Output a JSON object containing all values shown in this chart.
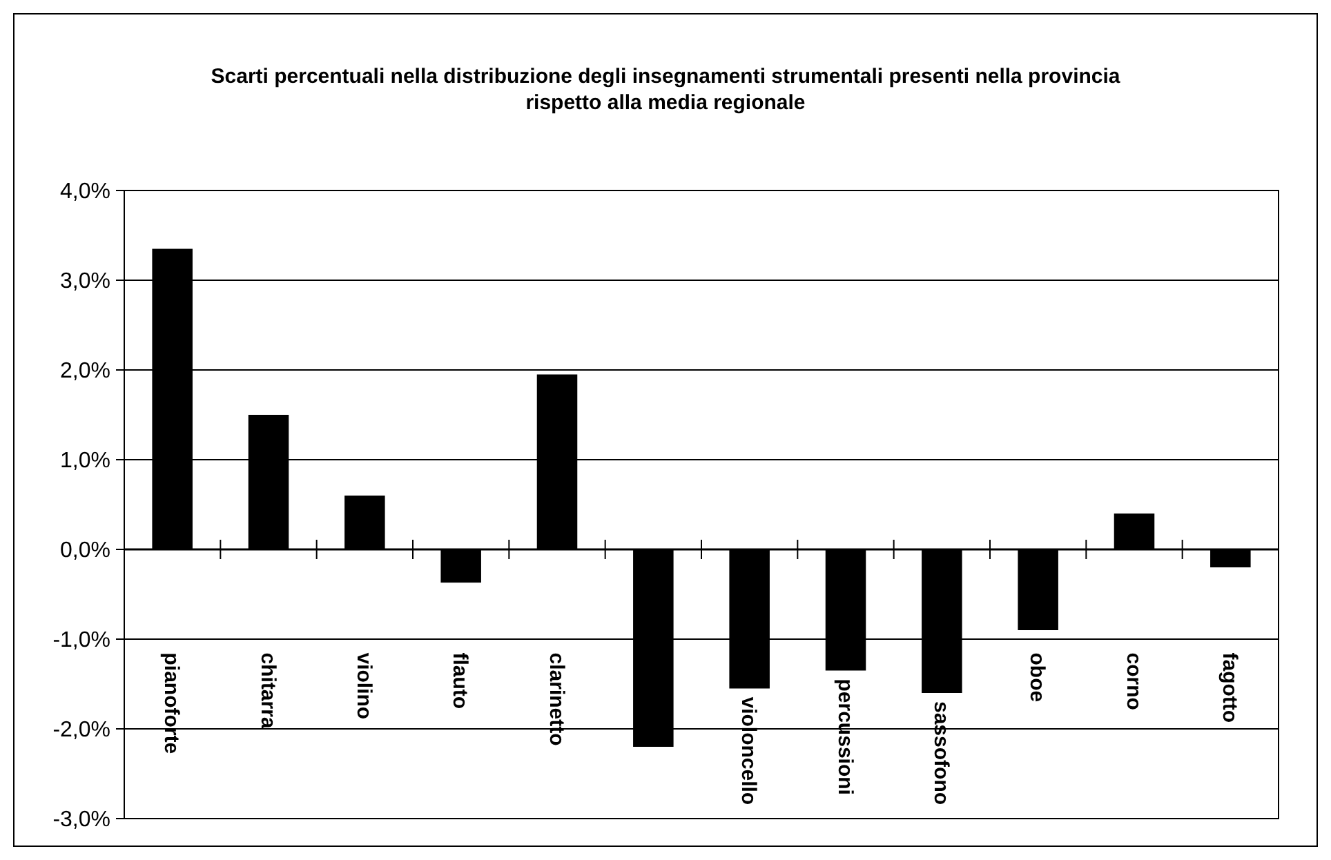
{
  "chart_data": {
    "type": "bar",
    "title": "Scarti percentuali nella distribuzione degli insegnamenti strumentali presenti nella provincia rispetto alla media regionale",
    "categories": [
      "pianoforte",
      "chitarra",
      "violino",
      "flauto",
      "clarinetto",
      null,
      "violoncello",
      "percussioni",
      "sassofono",
      "oboe",
      "corno",
      "fagotto"
    ],
    "values": [
      3.35,
      1.5,
      0.6,
      -0.37,
      1.95,
      -2.2,
      -1.55,
      -1.35,
      -1.6,
      -0.9,
      0.4,
      -0.2
    ],
    "color": "#000000",
    "ylim": [
      -3,
      4
    ],
    "yticks": [
      {
        "value": -3,
        "label": "-3,0%"
      },
      {
        "value": -2,
        "label": "-2,0%"
      },
      {
        "value": -1,
        "label": "-1,0%"
      },
      {
        "value": 0,
        "label": "0,0%"
      },
      {
        "value": 1,
        "label": "1,0%"
      },
      {
        "value": 2,
        "label": "2,0%"
      },
      {
        "value": 3,
        "label": "3,0%"
      },
      {
        "value": 4,
        "label": "4,0%"
      }
    ],
    "grid": "y"
  }
}
